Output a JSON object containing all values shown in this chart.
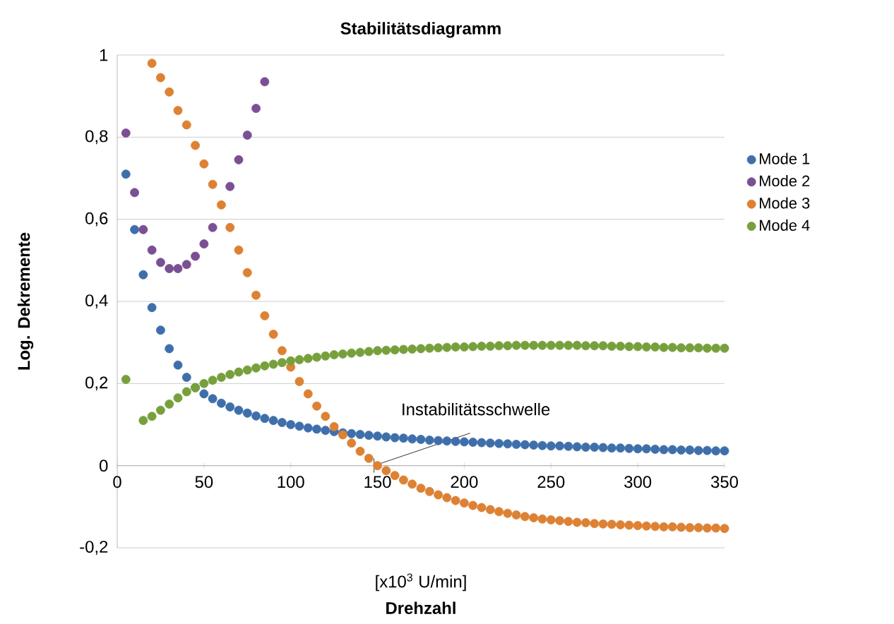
{
  "chart_data": {
    "type": "scatter",
    "title": "Stabilitätsdiagramm",
    "xlabel": "Drehzahl",
    "ylabel": "Log. Dekremente",
    "xlim": [
      0,
      350
    ],
    "ylim": [
      -0.2,
      1
    ],
    "xticks": [
      0,
      50,
      100,
      150,
      200,
      250,
      300,
      350
    ],
    "yticks": [
      {
        "value": -0.2,
        "label": "-0,2"
      },
      0,
      {
        "value": 0.2,
        "label": "0,2"
      },
      {
        "value": 0.4,
        "label": "0,4"
      },
      {
        "value": 0.6,
        "label": "0,6"
      },
      {
        "value": 0.8,
        "label": "0,8"
      },
      1
    ],
    "grid": "y",
    "legend": "right",
    "marker": "circle",
    "annotations": [
      {
        "text": "Instabilitätsschwelle",
        "x": 148,
        "y": 0
      },
      "[x10$^{3}$ U/min]"
    ],
    "series": [
      {
        "name": "Mode 1",
        "color": "#3f6fab",
        "x": [
          5,
          10,
          15,
          20,
          25,
          30,
          35,
          40,
          45,
          50,
          55,
          60,
          65,
          70,
          75,
          80,
          85,
          90,
          95,
          100,
          105,
          110,
          115,
          120,
          125,
          130,
          135,
          140,
          145,
          150,
          155,
          160,
          165,
          170,
          175,
          180,
          185,
          190,
          195,
          200,
          205,
          210,
          215,
          220,
          225,
          230,
          235,
          240,
          245,
          250,
          255,
          260,
          265,
          270,
          275,
          280,
          285,
          290,
          295,
          300,
          305,
          310,
          315,
          320,
          325,
          330,
          335,
          340,
          345,
          350
        ],
        "values": [
          0.71,
          0.575,
          0.465,
          0.385,
          0.33,
          0.285,
          0.245,
          0.215,
          0.19,
          0.175,
          0.163,
          0.152,
          0.143,
          0.135,
          0.128,
          0.121,
          0.115,
          0.11,
          0.105,
          0.1,
          0.096,
          0.092,
          0.089,
          0.086,
          0.083,
          0.08,
          0.078,
          0.076,
          0.074,
          0.072,
          0.07,
          0.068,
          0.067,
          0.065,
          0.064,
          0.062,
          0.061,
          0.06,
          0.059,
          0.058,
          0.057,
          0.056,
          0.055,
          0.054,
          0.053,
          0.052,
          0.051,
          0.05,
          0.049,
          0.048,
          0.048,
          0.047,
          0.046,
          0.045,
          0.045,
          0.044,
          0.043,
          0.043,
          0.042,
          0.041,
          0.041,
          0.04,
          0.039,
          0.039,
          0.038,
          0.038,
          0.037,
          0.037,
          0.036,
          0.036
        ]
      },
      {
        "name": "Mode 2",
        "color": "#7a4f94",
        "x": [
          5,
          10,
          15,
          20,
          25,
          30,
          35,
          40,
          45,
          50,
          55,
          60,
          65,
          70,
          75,
          80,
          85
        ],
        "values": [
          0.81,
          0.665,
          0.575,
          0.525,
          0.495,
          0.48,
          0.48,
          0.49,
          0.51,
          0.54,
          0.58,
          null,
          0.68,
          0.745,
          0.805,
          0.87,
          0.935
        ]
      },
      {
        "name": "Mode 3",
        "color": "#dd8133",
        "x": [
          20,
          25,
          30,
          35,
          40,
          45,
          50,
          55,
          60,
          65,
          70,
          75,
          80,
          85,
          90,
          95,
          100,
          105,
          110,
          115,
          120,
          125,
          130,
          135,
          140,
          145,
          150,
          155,
          160,
          165,
          170,
          175,
          180,
          185,
          190,
          195,
          200,
          205,
          210,
          215,
          220,
          225,
          230,
          235,
          240,
          245,
          250,
          255,
          260,
          265,
          270,
          275,
          280,
          285,
          290,
          295,
          300,
          305,
          310,
          315,
          320,
          325,
          330,
          335,
          340,
          345,
          350
        ],
        "values": [
          0.98,
          0.945,
          0.91,
          0.865,
          0.83,
          0.78,
          0.735,
          0.685,
          0.635,
          0.58,
          0.525,
          0.47,
          0.415,
          0.365,
          0.32,
          0.28,
          0.24,
          0.205,
          0.175,
          0.145,
          0.12,
          0.095,
          0.075,
          0.055,
          0.035,
          0.018,
          0.0,
          -0.012,
          -0.024,
          -0.035,
          -0.045,
          -0.055,
          -0.063,
          -0.071,
          -0.078,
          -0.085,
          -0.091,
          -0.097,
          -0.102,
          -0.107,
          -0.112,
          -0.116,
          -0.12,
          -0.124,
          -0.127,
          -0.13,
          -0.132,
          -0.134,
          -0.136,
          -0.138,
          -0.139,
          -0.141,
          -0.142,
          -0.143,
          -0.144,
          -0.145,
          -0.146,
          -0.147,
          -0.148,
          -0.149,
          -0.149,
          -0.15,
          -0.151,
          -0.151,
          -0.152,
          -0.152,
          -0.153
        ]
      },
      {
        "name": "Mode 4",
        "color": "#77a03c",
        "x": [
          5,
          15,
          20,
          25,
          30,
          35,
          40,
          45,
          50,
          55,
          60,
          65,
          70,
          75,
          80,
          85,
          90,
          95,
          100,
          105,
          110,
          115,
          120,
          125,
          130,
          135,
          140,
          145,
          150,
          155,
          160,
          165,
          170,
          175,
          180,
          185,
          190,
          195,
          200,
          205,
          210,
          215,
          220,
          225,
          230,
          235,
          240,
          245,
          250,
          255,
          260,
          265,
          270,
          275,
          280,
          285,
          290,
          295,
          300,
          305,
          310,
          315,
          320,
          325,
          330,
          335,
          340,
          345,
          350
        ],
        "values": [
          0.21,
          0.11,
          0.12,
          0.135,
          0.15,
          0.165,
          0.18,
          0.19,
          0.2,
          0.208,
          0.215,
          0.222,
          0.228,
          0.233,
          0.238,
          0.243,
          0.247,
          0.251,
          0.255,
          0.258,
          0.261,
          0.264,
          0.267,
          0.27,
          0.272,
          0.274,
          0.276,
          0.278,
          0.28,
          0.281,
          0.282,
          0.283,
          0.284,
          0.285,
          0.286,
          0.287,
          0.288,
          0.289,
          0.289,
          0.29,
          0.291,
          0.291,
          0.292,
          0.292,
          0.293,
          0.293,
          0.293,
          0.293,
          0.293,
          0.293,
          0.293,
          0.293,
          0.292,
          0.292,
          0.292,
          0.291,
          0.291,
          0.29,
          0.29,
          0.289,
          0.289,
          0.288,
          0.288,
          0.287,
          0.287,
          0.287,
          0.286,
          0.286,
          0.286
        ]
      }
    ]
  }
}
